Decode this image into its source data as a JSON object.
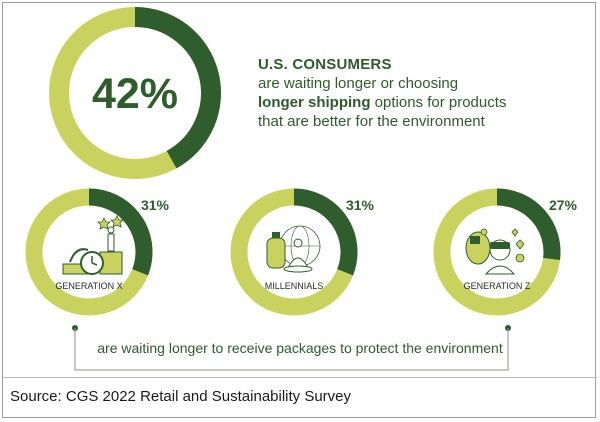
{
  "headline": {
    "title": "U.S. CONSUMERS",
    "line1": "are waiting longer or choosing",
    "line2_bold": "longer shipping",
    "line2_rest": " options for products",
    "line3": "that are better for the environment"
  },
  "footer_text": "are waiting longer to receive packages to protect the environment",
  "source": "Source: CGS 2022 Retail and Sustainability Survey",
  "colors": {
    "dark_green": "#2f5d2d",
    "light_green": "#c9d25f",
    "text_green": "#2e5a2c"
  },
  "chart_data": [
    {
      "type": "pie",
      "label": "U.S. CONSUMERS",
      "value": 42,
      "value_label": "42%",
      "remainder": 58
    },
    {
      "type": "pie",
      "label": "GENERATION X",
      "value": 31,
      "value_label": "31%",
      "remainder": 69,
      "icon": "clock-and-trophy-icon"
    },
    {
      "type": "pie",
      "label": "MILLENNIALS",
      "value": 31,
      "value_label": "31%",
      "remainder": 69,
      "icon": "meditation-and-globe-icon"
    },
    {
      "type": "pie",
      "label": "GENERATION Z",
      "value": 27,
      "value_label": "27%",
      "remainder": 73,
      "icon": "vr-headset-and-likes-icon"
    }
  ]
}
